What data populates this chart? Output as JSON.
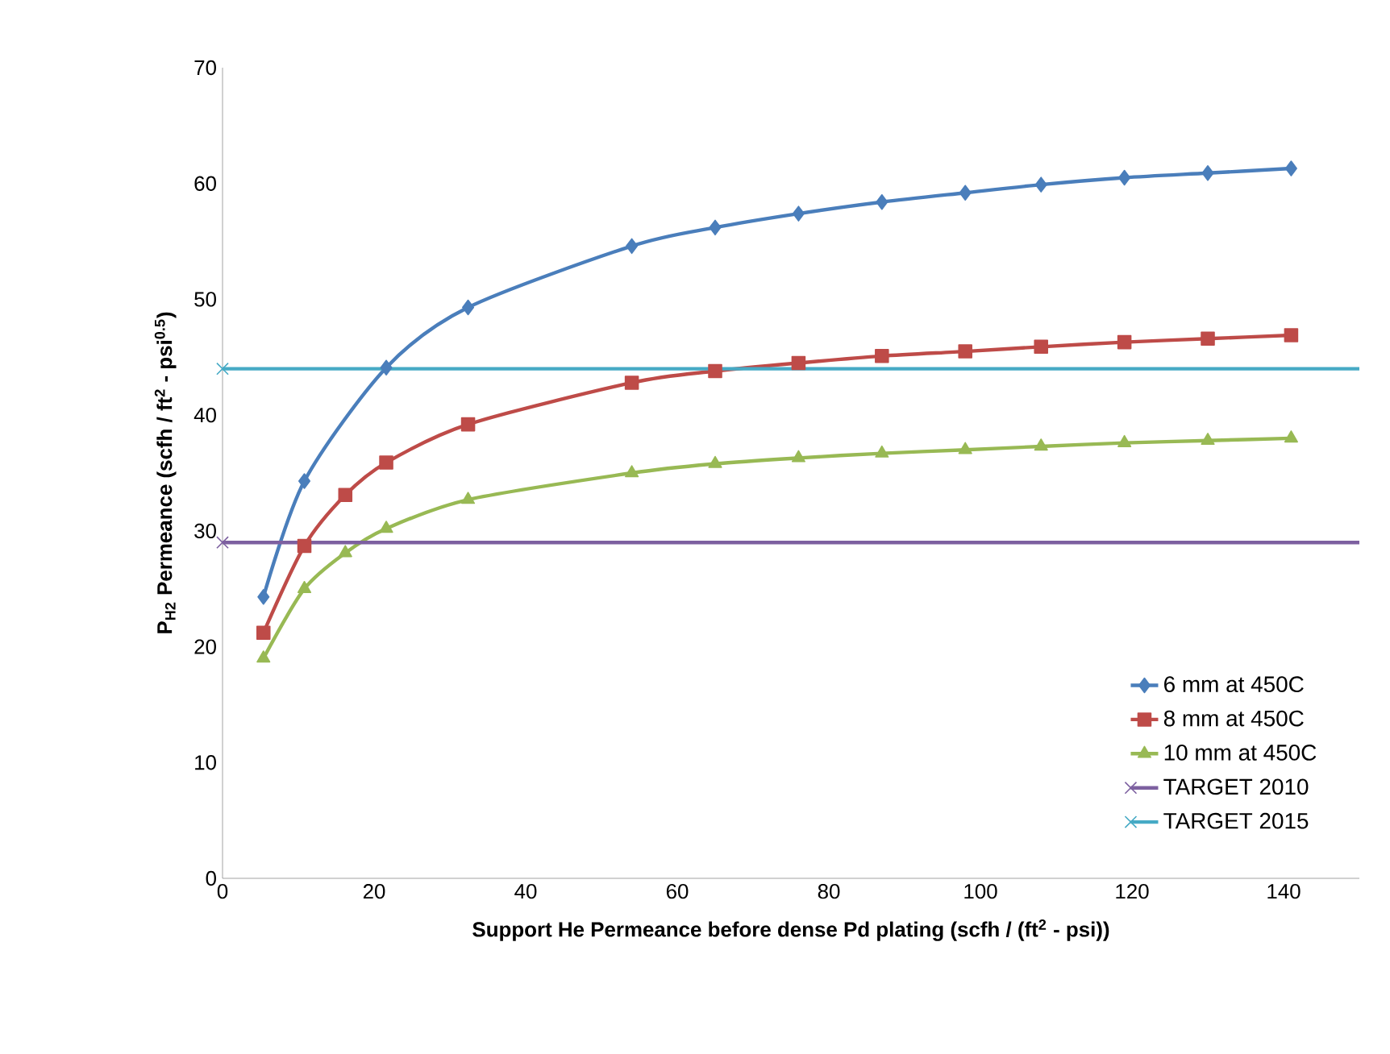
{
  "chart_data": {
    "type": "line",
    "xlabel": "Support He Permeance before dense Pd plating (scfh / (ft$^{2}$ - psi))",
    "ylabel": "P$_{H2}$ Permeance (scfh / ft$^{2}$ - psi$^{0.5}$)",
    "xlim": [
      0,
      150
    ],
    "xticks": [
      0,
      20,
      40,
      60,
      80,
      100,
      120,
      140
    ],
    "ylim": [
      0,
      70
    ],
    "yticks": [
      0,
      10,
      20,
      30,
      40,
      50,
      60,
      70
    ],
    "legend": "bottom right",
    "grid": false,
    "series": [
      {
        "name": "6 mm at 450C",
        "color": "#4a7ebb",
        "marker": "diamond",
        "x": [
          5.4,
          10.8,
          21.6,
          32.4,
          54,
          65,
          76,
          87,
          98,
          108,
          119,
          130,
          141
        ],
        "values": [
          24.3,
          34.3,
          44.1,
          49.3,
          54.6,
          56.2,
          57.4,
          58.4,
          59.2,
          59.9,
          60.5,
          60.9,
          61.3
        ]
      },
      {
        "name": "8 mm at 450C",
        "color": "#be4b48",
        "marker": "square",
        "x": [
          5.4,
          10.8,
          16.2,
          21.6,
          32.4,
          54,
          65,
          76,
          87,
          98,
          108,
          119,
          130,
          141
        ],
        "values": [
          21.2,
          28.7,
          33.1,
          35.9,
          39.2,
          42.8,
          43.8,
          44.5,
          45.1,
          45.5,
          45.9,
          46.3,
          46.6,
          46.9
        ]
      },
      {
        "name": "10 mm at 450C",
        "color": "#98b954",
        "marker": "triangle",
        "x": [
          5.4,
          10.8,
          16.2,
          21.6,
          32.4,
          54,
          65,
          76,
          87,
          98,
          108,
          119,
          130,
          141
        ],
        "values": [
          19.0,
          25.0,
          28.1,
          30.2,
          32.7,
          35.0,
          35.8,
          36.3,
          36.7,
          37.0,
          37.3,
          37.6,
          37.8,
          38.0
        ]
      },
      {
        "name": "TARGET 2010",
        "color": "#7d60a0",
        "marker": "cross",
        "x": [
          0,
          150
        ],
        "values": [
          29,
          29
        ]
      },
      {
        "name": "TARGET 2015",
        "color": "#46aac5",
        "marker": "cross",
        "x": [
          0,
          150
        ],
        "values": [
          44,
          44
        ]
      }
    ]
  }
}
